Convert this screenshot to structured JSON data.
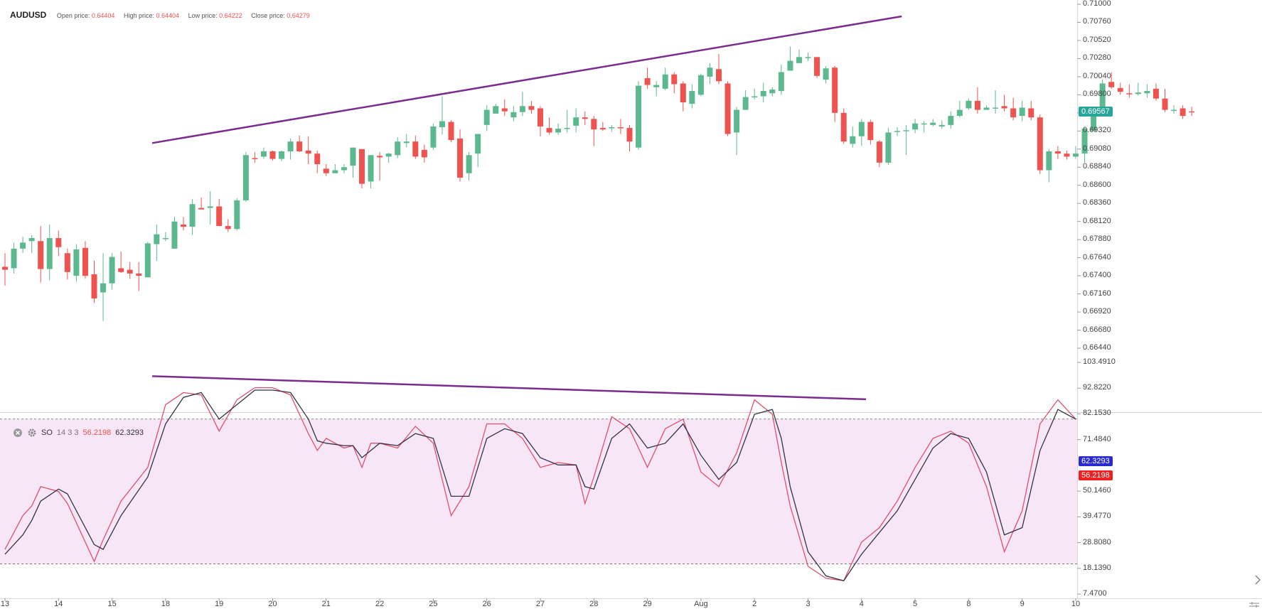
{
  "header": {
    "symbol": "AUDUSD",
    "open_label": "Open price:",
    "open_value": "0.64404",
    "high_label": "High price:",
    "high_value": "0.64404",
    "low_label": "Low price:",
    "low_value": "0.64222",
    "close_label": "Close price:",
    "close_value": "0.64279"
  },
  "indicator": {
    "close_icon": "close-circle-icon",
    "settings_icon": "gear-icon",
    "name": "SO",
    "params": "14 3 3",
    "value_k": "56.2198",
    "value_d": "62.3293"
  },
  "colors": {
    "up": "#26a69a",
    "up_body": "#5cb88e",
    "down": "#ef5350",
    "trendline": "#7b2c8f",
    "k_line": "#e0506e",
    "d_line": "#333344",
    "band_fill": "#f6e6f6",
    "price_badge": "#26a69a",
    "d_badge": "#2a2ad0",
    "k_badge": "#ef2020"
  },
  "chart_data": [
    {
      "type": "candlestick",
      "symbol": "AUDUSD",
      "y_ticks": [
        "0.71000",
        "0.70760",
        "0.70520",
        "0.70280",
        "0.70040",
        "0.69800",
        "0.69560",
        "0.69320",
        "0.69080",
        "0.68840",
        "0.68600",
        "0.68360",
        "0.68120",
        "0.67880",
        "0.67640",
        "0.67400",
        "0.67160",
        "0.66920",
        "0.66680",
        "0.66440"
      ],
      "ylim": [
        0.6644,
        0.71
      ],
      "current_price": "0.69567",
      "x_ticks": [
        "13",
        "14",
        "15",
        "18",
        "19",
        "20",
        "21",
        "22",
        "25",
        "26",
        "27",
        "28",
        "29",
        "Aug",
        "2",
        "3",
        "4",
        "5",
        "8",
        "9",
        "10"
      ],
      "tick_index": [
        0,
        6,
        12,
        18,
        24,
        30,
        36,
        42,
        48,
        54,
        60,
        66,
        72,
        78,
        84,
        90,
        96,
        102,
        108,
        114,
        120
      ],
      "candles": [
        [
          0.6752,
          0.6748,
          0.677,
          0.6727
        ],
        [
          0.675,
          0.6776,
          0.6784,
          0.6743
        ],
        [
          0.6776,
          0.6784,
          0.6792,
          0.677
        ],
        [
          0.6786,
          0.679,
          0.6794,
          0.677
        ],
        [
          0.6786,
          0.6749,
          0.6806,
          0.6731
        ],
        [
          0.6749,
          0.679,
          0.6808,
          0.6734
        ],
        [
          0.679,
          0.6778,
          0.68,
          0.6766
        ],
        [
          0.677,
          0.6745,
          0.6776,
          0.6735
        ],
        [
          0.674,
          0.6775,
          0.6782,
          0.6732
        ],
        [
          0.6777,
          0.674,
          0.6786,
          0.6736
        ],
        [
          0.6742,
          0.671,
          0.676,
          0.6704
        ],
        [
          0.6718,
          0.673,
          0.677,
          0.668
        ],
        [
          0.673,
          0.6765,
          0.677,
          0.6722
        ],
        [
          0.675,
          0.6745,
          0.6772,
          0.6744
        ],
        [
          0.6748,
          0.6743,
          0.6758,
          0.6736
        ],
        [
          0.6743,
          0.674,
          0.6758,
          0.672
        ],
        [
          0.6738,
          0.6783,
          0.6785,
          0.6738
        ],
        [
          0.6782,
          0.6795,
          0.6808,
          0.676
        ],
        [
          0.679,
          0.679,
          0.6798,
          0.6786
        ],
        [
          0.6776,
          0.6812,
          0.6818,
          0.6776
        ],
        [
          0.6808,
          0.6805,
          0.6818,
          0.68
        ],
        [
          0.6805,
          0.6835,
          0.6842,
          0.6794
        ],
        [
          0.683,
          0.6828,
          0.6844,
          0.6828
        ],
        [
          0.683,
          0.6832,
          0.6852,
          0.6808
        ],
        [
          0.6832,
          0.6806,
          0.6842,
          0.6806
        ],
        [
          0.6806,
          0.6802,
          0.6815,
          0.6798
        ],
        [
          0.6802,
          0.684,
          0.6843,
          0.68
        ],
        [
          0.684,
          0.69,
          0.6904,
          0.6838
        ],
        [
          0.6896,
          0.6895,
          0.6904,
          0.689
        ],
        [
          0.6898,
          0.6905,
          0.691,
          0.6895
        ],
        [
          0.6905,
          0.6895,
          0.6906,
          0.6893
        ],
        [
          0.6895,
          0.6905,
          0.6906,
          0.6892
        ],
        [
          0.6905,
          0.6918,
          0.6922,
          0.6894
        ],
        [
          0.6918,
          0.6905,
          0.6926,
          0.6904
        ],
        [
          0.6906,
          0.6902,
          0.6925,
          0.6888
        ],
        [
          0.6902,
          0.6888,
          0.6906,
          0.6876
        ],
        [
          0.6882,
          0.6876,
          0.6888,
          0.6872
        ],
        [
          0.6876,
          0.688,
          0.6888,
          0.6876
        ],
        [
          0.688,
          0.6884,
          0.6888,
          0.6876
        ],
        [
          0.6886,
          0.691,
          0.691,
          0.687
        ],
        [
          0.6908,
          0.6862,
          0.6908,
          0.6856
        ],
        [
          0.6865,
          0.69,
          0.69,
          0.6856
        ],
        [
          0.6899,
          0.6897,
          0.6904,
          0.6866
        ],
        [
          0.6898,
          0.6902,
          0.6903,
          0.689
        ],
        [
          0.69,
          0.6918,
          0.6924,
          0.6896
        ],
        [
          0.6916,
          0.6918,
          0.6928,
          0.691
        ],
        [
          0.6918,
          0.6898,
          0.6926,
          0.6895
        ],
        [
          0.6907,
          0.6897,
          0.6914,
          0.689
        ],
        [
          0.691,
          0.6938,
          0.6942,
          0.6907
        ],
        [
          0.6937,
          0.6945,
          0.6978,
          0.6927
        ],
        [
          0.6944,
          0.692,
          0.6946,
          0.6917
        ],
        [
          0.6922,
          0.687,
          0.6934,
          0.6865
        ],
        [
          0.6876,
          0.69,
          0.6904,
          0.6866
        ],
        [
          0.6902,
          0.6928,
          0.6928,
          0.6884
        ],
        [
          0.694,
          0.696,
          0.6966,
          0.6932
        ],
        [
          0.6955,
          0.6965,
          0.6968,
          0.6955
        ],
        [
          0.6962,
          0.6958,
          0.6974,
          0.6952
        ],
        [
          0.695,
          0.6957,
          0.6965,
          0.6945
        ],
        [
          0.6957,
          0.6965,
          0.6984,
          0.6952
        ],
        [
          0.6965,
          0.696,
          0.6972,
          0.6955
        ],
        [
          0.6962,
          0.6938,
          0.6965,
          0.6925
        ],
        [
          0.6936,
          0.693,
          0.695,
          0.6927
        ],
        [
          0.693,
          0.6935,
          0.6942,
          0.6927
        ],
        [
          0.6936,
          0.6936,
          0.696,
          0.693
        ],
        [
          0.6939,
          0.695,
          0.6962,
          0.693
        ],
        [
          0.695,
          0.6948,
          0.6958,
          0.694
        ],
        [
          0.6948,
          0.6934,
          0.6952,
          0.6912
        ],
        [
          0.6936,
          0.6934,
          0.6944,
          0.6932
        ],
        [
          0.6936,
          0.6937,
          0.694,
          0.6931
        ],
        [
          0.6937,
          0.6936,
          0.6948,
          0.6928
        ],
        [
          0.6936,
          0.6918,
          0.694,
          0.6905
        ],
        [
          0.691,
          0.6992,
          0.6998,
          0.6907
        ],
        [
          0.7002,
          0.6993,
          0.7016,
          0.6988
        ],
        [
          0.699,
          0.6993,
          0.6998,
          0.6978
        ],
        [
          0.6988,
          0.7007,
          0.7016,
          0.6986
        ],
        [
          0.7007,
          0.6994,
          0.701,
          0.6982
        ],
        [
          0.6995,
          0.697,
          0.6998,
          0.6958
        ],
        [
          0.6968,
          0.6985,
          0.6994,
          0.6962
        ],
        [
          0.698,
          0.7006,
          0.7008,
          0.6978
        ],
        [
          0.7004,
          0.7016,
          0.7022,
          0.6994
        ],
        [
          0.7014,
          0.6998,
          0.7034,
          0.6994
        ],
        [
          0.6995,
          0.6928,
          0.6998,
          0.6925
        ],
        [
          0.693,
          0.696,
          0.6964,
          0.69
        ],
        [
          0.696,
          0.6977,
          0.6986,
          0.696
        ],
        [
          0.6977,
          0.6978,
          0.6988,
          0.6974
        ],
        [
          0.6978,
          0.6985,
          0.6996,
          0.697
        ],
        [
          0.6982,
          0.6987,
          0.699,
          0.6978
        ],
        [
          0.6985,
          0.701,
          0.702,
          0.698
        ],
        [
          0.7012,
          0.7025,
          0.7044,
          0.702
        ],
        [
          0.7022,
          0.703,
          0.704,
          0.7022
        ],
        [
          0.703,
          0.703,
          0.7036,
          0.7025
        ],
        [
          0.703,
          0.7005,
          0.703,
          0.7002
        ],
        [
          0.7,
          0.7015,
          0.7018,
          0.6995
        ],
        [
          0.7016,
          0.6956,
          0.7018,
          0.6944
        ],
        [
          0.6956,
          0.6918,
          0.6962,
          0.6915
        ],
        [
          0.6915,
          0.6925,
          0.6938,
          0.691
        ],
        [
          0.6925,
          0.6944,
          0.6948,
          0.6912
        ],
        [
          0.6944,
          0.692,
          0.6947,
          0.6914
        ],
        [
          0.6918,
          0.689,
          0.692,
          0.6884
        ],
        [
          0.689,
          0.693,
          0.6936,
          0.6887
        ],
        [
          0.6932,
          0.6932,
          0.6937,
          0.6925
        ],
        [
          0.6933,
          0.6933,
          0.694,
          0.69
        ],
        [
          0.6934,
          0.6942,
          0.6948,
          0.6929
        ],
        [
          0.6942,
          0.6942,
          0.6945,
          0.693
        ],
        [
          0.694,
          0.6943,
          0.6948,
          0.6938
        ],
        [
          0.6938,
          0.694,
          0.6946,
          0.6935
        ],
        [
          0.694,
          0.6952,
          0.6958,
          0.6935
        ],
        [
          0.6952,
          0.696,
          0.6972,
          0.695
        ],
        [
          0.6962,
          0.6972,
          0.6975,
          0.696
        ],
        [
          0.6972,
          0.696,
          0.699,
          0.6955
        ],
        [
          0.696,
          0.6963,
          0.6966,
          0.696
        ],
        [
          0.6962,
          0.6963,
          0.6986,
          0.6955
        ],
        [
          0.6965,
          0.6962,
          0.698,
          0.6958
        ],
        [
          0.6962,
          0.695,
          0.6976,
          0.6946
        ],
        [
          0.6952,
          0.6963,
          0.6972,
          0.6945
        ],
        [
          0.6962,
          0.695,
          0.6972,
          0.6946
        ],
        [
          0.695,
          0.688,
          0.6954,
          0.6875
        ],
        [
          0.688,
          0.6905,
          0.6908,
          0.6864
        ],
        [
          0.6905,
          0.6902,
          0.6912,
          0.6895
        ],
        [
          0.6902,
          0.6898,
          0.6906,
          0.6894
        ],
        [
          0.6898,
          0.6902,
          0.6912,
          0.6895
        ],
        [
          0.6902,
          0.6935,
          0.6936,
          0.689
        ],
        [
          0.6932,
          0.6962,
          0.6964,
          0.6932
        ],
        [
          0.6962,
          0.6995,
          0.7,
          0.6961
        ],
        [
          0.6997,
          0.699,
          0.701,
          0.6988
        ],
        [
          0.6989,
          0.6984,
          0.6996,
          0.698
        ],
        [
          0.6982,
          0.6981,
          0.6994,
          0.6976
        ],
        [
          0.6981,
          0.6983,
          0.6996,
          0.6979
        ],
        [
          0.6982,
          0.6985,
          0.6994,
          0.6976
        ],
        [
          0.6988,
          0.6975,
          0.6995,
          0.6972
        ],
        [
          0.6975,
          0.696,
          0.6988,
          0.6957
        ],
        [
          0.696,
          0.696,
          0.6966,
          0.6955
        ],
        [
          0.6962,
          0.6952,
          0.6966,
          0.6948
        ],
        [
          0.6958,
          0.6957,
          0.6964,
          0.6952
        ]
      ],
      "trendline": {
        "from": [
          16.5,
          0.6916
        ],
        "to": [
          100.5,
          0.7084
        ]
      }
    },
    {
      "type": "line",
      "name": "SO 14 3 3",
      "y_ticks": [
        "103.4910",
        "92.8220",
        "82.1530",
        "71.4840",
        "50.1460",
        "39.4770",
        "28.8080",
        "18.1390",
        "7.4700"
      ],
      "ylim": [
        7.47,
        103.491
      ],
      "upper_band": 80,
      "lower_band": 20,
      "last_k": "56.2198",
      "last_d": "62.3293",
      "series": [
        {
          "name": "%K",
          "x": [
            0,
            2,
            3,
            4,
            6,
            7,
            10,
            11,
            13,
            16,
            18,
            20,
            22,
            24,
            26,
            28,
            30,
            32,
            34,
            35,
            36,
            38,
            39,
            40,
            41,
            42,
            44,
            46,
            48,
            50,
            52,
            54,
            56,
            58,
            60,
            62,
            64,
            65,
            66,
            68,
            70,
            72,
            74,
            76,
            78,
            80,
            82,
            84,
            86,
            87,
            88,
            90,
            92,
            94,
            96,
            98,
            100,
            102,
            104,
            106,
            108,
            110,
            112,
            114,
            116,
            118,
            120
          ],
          "y": [
            26,
            40,
            44,
            52,
            50,
            45,
            21,
            30,
            46,
            60,
            86,
            91,
            90,
            75,
            88,
            93,
            93,
            90,
            74,
            67,
            72,
            68,
            69,
            60,
            70,
            70,
            68,
            77,
            70,
            40,
            52,
            78,
            78,
            72,
            60,
            62,
            61,
            45,
            56,
            81,
            76,
            60,
            76,
            80,
            58,
            52,
            66,
            88,
            82,
            62,
            44,
            19,
            14,
            13,
            29,
            35,
            46,
            60,
            72,
            75,
            70,
            52,
            25,
            42,
            78,
            88,
            80
          ]
        },
        {
          "name": "%D",
          "x": [
            0,
            2,
            3,
            4,
            6,
            7,
            10,
            11,
            13,
            16,
            18,
            20,
            22,
            24,
            26,
            28,
            30,
            32,
            34,
            35,
            36,
            38,
            39,
            40,
            41,
            42,
            44,
            46,
            48,
            50,
            52,
            54,
            56,
            58,
            60,
            62,
            64,
            65,
            66,
            68,
            70,
            72,
            74,
            76,
            78,
            80,
            82,
            84,
            86,
            87,
            88,
            90,
            92,
            94,
            96,
            98,
            100,
            102,
            104,
            106,
            108,
            110,
            112,
            114,
            116,
            118,
            120
          ],
          "y": [
            24,
            32,
            38,
            46,
            51,
            49,
            28,
            26,
            40,
            56,
            78,
            89,
            91,
            80,
            86,
            92,
            92,
            91,
            80,
            71,
            70,
            69,
            69,
            64,
            67,
            70,
            69,
            74,
            72,
            48,
            48,
            72,
            76,
            74,
            64,
            61,
            61,
            52,
            51,
            72,
            78,
            68,
            70,
            78,
            65,
            55,
            62,
            82,
            84,
            72,
            52,
            25,
            15,
            13,
            24,
            33,
            42,
            55,
            68,
            74,
            72,
            58,
            32,
            35,
            67,
            84,
            80
          ]
        }
      ],
      "trendline": {
        "from": [
          16.5,
          97.8
        ],
        "to": [
          96.5,
          88.2
        ]
      }
    }
  ]
}
